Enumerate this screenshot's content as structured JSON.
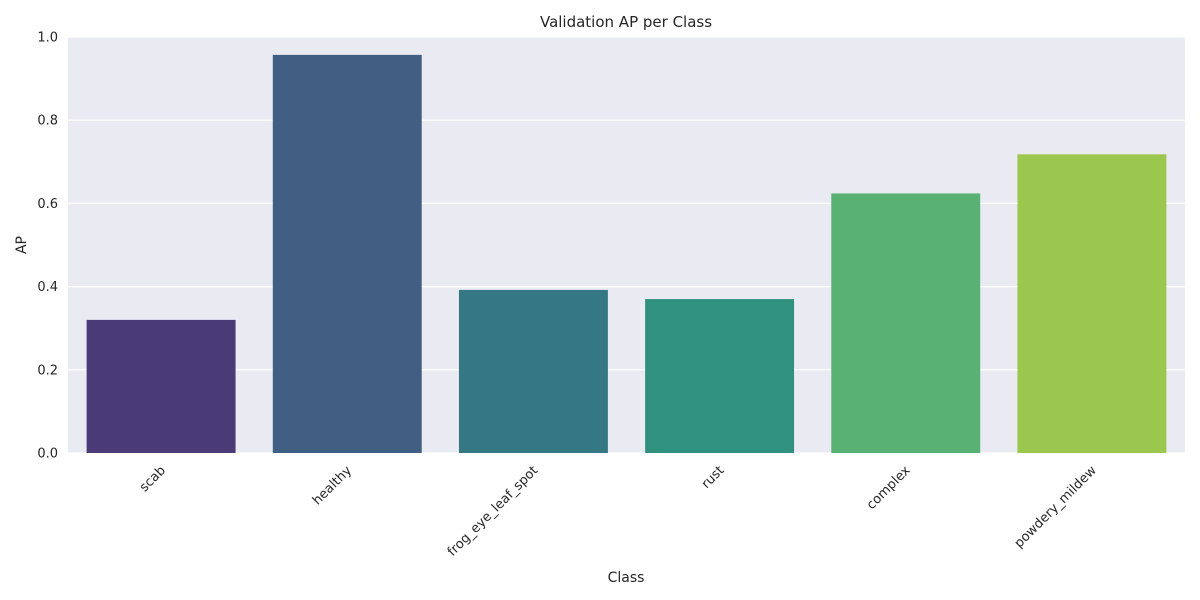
{
  "chart_data": {
    "type": "bar",
    "title": "Validation AP per Class",
    "xlabel": "Class",
    "ylabel": "AP",
    "categories": [
      "scab",
      "healthy",
      "frog_eye_leaf_spot",
      "rust",
      "complex",
      "powdery_mildew"
    ],
    "values": [
      0.32,
      0.957,
      0.392,
      0.37,
      0.624,
      0.718
    ],
    "colors": [
      "#4a3a75",
      "#415e83",
      "#357782",
      "#30917e",
      "#59b174",
      "#9bc74f"
    ],
    "ylim": [
      0,
      1.0
    ],
    "yticks": [
      "0.0",
      "0.2",
      "0.4",
      "0.6",
      "0.8",
      "1.0"
    ],
    "grid": true,
    "background": "#eaeaf2"
  }
}
